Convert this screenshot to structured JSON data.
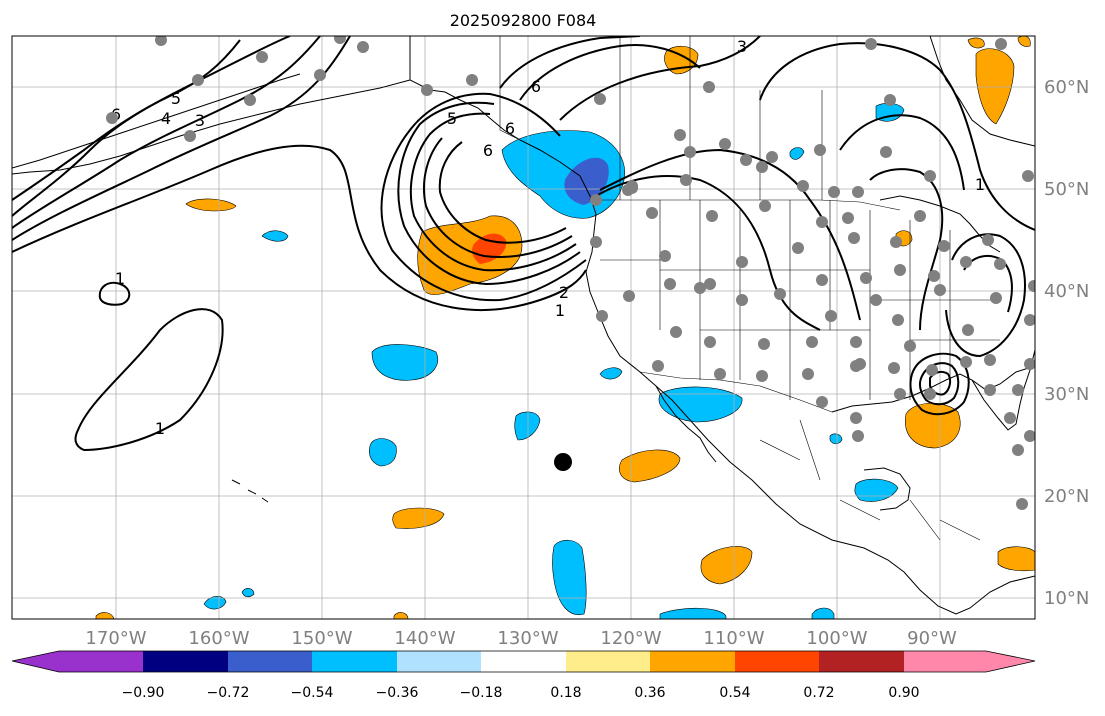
{
  "title": "2025092800 F084",
  "lon_ticks": [
    "170°W",
    "160°W",
    "150°W",
    "140°W",
    "130°W",
    "120°W",
    "110°W",
    "100°W",
    "90°W"
  ],
  "lat_ticks": [
    "60°N",
    "50°N",
    "40°N",
    "30°N",
    "20°N",
    "10°N"
  ],
  "contour_labels": [
    "1",
    "1",
    "1",
    "1",
    "2",
    "3",
    "3",
    "4",
    "5",
    "5",
    "6",
    "6",
    "6",
    "6"
  ],
  "colorbar": {
    "ticks": [
      "−0.90",
      "−0.72",
      "−0.54",
      "−0.36",
      "−0.18",
      "0.18",
      "0.36",
      "0.54",
      "0.72",
      "0.90"
    ],
    "colors": [
      "#9932cc",
      "#000080",
      "#3a5fcd",
      "#00bfff",
      "#b0e2ff",
      "#ffffff",
      "#ffec8b",
      "#ffa500",
      "#ff4500",
      "#b22222",
      "#ff88aa"
    ]
  },
  "colors": {
    "contour": "#000000",
    "station_dot": "#808080",
    "marker_dot": "#000000",
    "grid": "#b0b0b0",
    "tick_label": "#808080"
  }
}
